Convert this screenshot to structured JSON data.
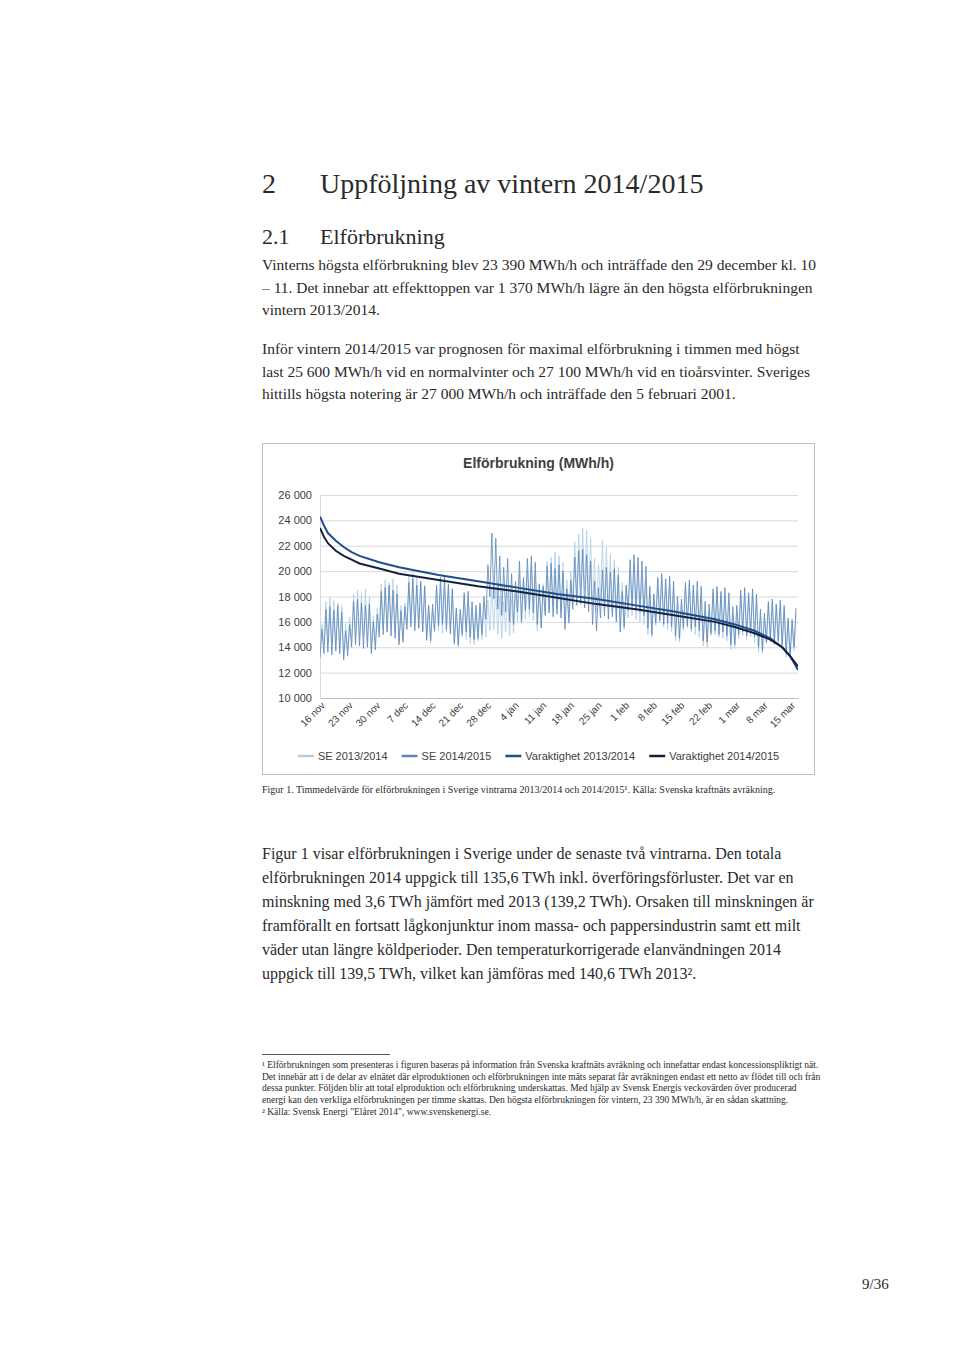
{
  "document": {
    "heading": {
      "number": "2",
      "text": "Uppföljning av vintern 2014/2015"
    },
    "subheading": {
      "number": "2.1",
      "text": "Elförbrukning"
    },
    "paragraphs": [
      "Vinterns högsta elförbrukning blev 23 390 MWh/h och inträffade den 29 december kl. 10 – 11. Det innebar att effekttoppen var 1 370 MWh/h lägre än den högsta elförbrukningen vintern 2013/2014.",
      "Inför vintern 2014/2015 var prognosen för maximal elförbrukning i timmen med högst last 25 600 MWh/h vid en normalvinter och 27 100 MWh/h vid en tioårsvinter. Sveriges hittills högsta notering är 27 000 MWh/h och inträffade den 5 februari 2001."
    ],
    "caption": "Figur 1. Timmedelvärde för elförbrukningen i Sverige vintrarna 2013/2014 och 2014/2015¹. Källa: Svenska kraftnäts avräkning.",
    "paragraphs_after": [
      "Figur 1 visar elförbrukningen i Sverige under de senaste två vintrarna. Den totala elförbrukningen 2014 uppgick till 135,6 TWh inkl. överföringsförluster. Det var en minskning med 3,6 TWh jämfört med 2013 (139,2 TWh). Orsaken till minskningen är framförallt en fortsatt lågkonjunktur inom massa- och pappersindustrin samt ett milt väder utan längre köldperioder. Den temperaturkorrigerade elanvändningen 2014 uppgick till 139,5 TWh, vilket kan jämföras med 140,6 TWh 2013²."
    ],
    "footnotes": [
      "¹ Elförbrukningen som presenteras i figuren baseras på information från Svenska kraftnäts avräkning och innefattar endast koncessionspliktigt nät. Det innebär att i de delar av elnätet där elproduktionen och elförbrukningen inte mäts separat får avräkningen endast ett netto av flödet till och från dessa punkter. Följden blir att total elproduktion och elförbrukning underskattas. Med hjälp av Svensk Energis veckovärden över producerad energi kan den verkliga elförbrukningen per timme skattas. Den högsta elförbrukningen för vintern, 23 390 MWh/h, är en sådan skattning.",
      "² Källa: Svensk Energi \"Elåret 2014\", www.svenskenergi.se."
    ],
    "page_number": "9/36"
  },
  "chart_data": {
    "type": "line",
    "title": "Elförbrukning (MWh/h)",
    "grid": true,
    "xlim": [
      0,
      121
    ],
    "ylim": [
      10000,
      26000
    ],
    "yticks": [
      {
        "value": 10000,
        "label": "10 000"
      },
      {
        "value": 12000,
        "label": "12 000"
      },
      {
        "value": 14000,
        "label": "14 000"
      },
      {
        "value": 16000,
        "label": "16 000"
      },
      {
        "value": 18000,
        "label": "18 000"
      },
      {
        "value": 20000,
        "label": "20 000"
      },
      {
        "value": 22000,
        "label": "22 000"
      },
      {
        "value": 24000,
        "label": "24 000"
      },
      {
        "value": 26000,
        "label": "26 000"
      }
    ],
    "xticks": [
      {
        "value": 0,
        "label": "16 nov"
      },
      {
        "value": 7,
        "label": "23 nov"
      },
      {
        "value": 14,
        "label": "30 nov"
      },
      {
        "value": 21,
        "label": "7 dec"
      },
      {
        "value": 28,
        "label": "14 dec"
      },
      {
        "value": 35,
        "label": "21 dec"
      },
      {
        "value": 42,
        "label": "28 dec"
      },
      {
        "value": 49,
        "label": "4 jan"
      },
      {
        "value": 56,
        "label": "11 jan"
      },
      {
        "value": 63,
        "label": "18 jan"
      },
      {
        "value": 70,
        "label": "25 jan"
      },
      {
        "value": 77,
        "label": "1 feb"
      },
      {
        "value": 84,
        "label": "8 feb"
      },
      {
        "value": 91,
        "label": "15 feb"
      },
      {
        "value": 98,
        "label": "22 feb"
      },
      {
        "value": 105,
        "label": "1 mar"
      },
      {
        "value": 112,
        "label": "8 mar"
      },
      {
        "value": 119,
        "label": "15 mar"
      }
    ],
    "x": [
      0,
      0.5,
      1,
      1.5,
      2,
      2.5,
      3,
      3.5,
      4,
      4.5,
      5,
      5.5,
      6,
      6.5,
      7,
      7.5,
      8,
      8.5,
      9,
      9.5,
      10,
      10.5,
      11,
      11.5,
      12,
      12.5,
      13,
      13.5,
      14,
      14.5,
      15,
      15.5,
      16,
      16.5,
      17,
      17.5,
      18,
      18.5,
      19,
      19.5,
      20,
      20.5,
      21,
      21.5,
      22,
      22.5,
      23,
      23.5,
      24,
      24.5,
      25,
      25.5,
      26,
      26.5,
      27,
      27.5,
      28,
      28.5,
      29,
      29.5,
      30,
      30.5,
      31,
      31.5,
      32,
      32.5,
      33,
      33.5,
      34,
      34.5,
      35,
      35.5,
      36,
      36.5,
      37,
      37.5,
      38,
      38.5,
      39,
      39.5,
      40,
      40.5,
      41,
      41.5,
      42,
      42.5,
      43,
      43.5,
      44,
      44.5,
      45,
      45.5,
      46,
      46.5,
      47,
      47.5,
      48,
      48.5,
      49,
      49.5,
      50,
      50.5,
      51,
      51.5,
      52,
      52.5,
      53,
      53.5,
      54,
      54.5,
      55,
      55.5,
      56,
      56.5,
      57,
      57.5,
      58,
      58.5,
      59,
      59.5,
      60,
      60.5,
      61,
      61.5,
      62,
      62.5,
      63,
      63.5,
      64,
      64.5,
      65,
      65.5,
      66,
      66.5,
      67,
      67.5,
      68,
      68.5,
      69,
      69.5,
      70,
      70.5,
      71,
      71.5,
      72,
      72.5,
      73,
      73.5,
      74,
      74.5,
      75,
      75.5,
      76,
      76.5,
      77,
      77.5,
      78,
      78.5,
      79,
      79.5,
      80,
      80.5,
      81,
      81.5,
      82,
      82.5,
      83,
      83.5,
      84,
      84.5,
      85,
      85.5,
      86,
      86.5,
      87,
      87.5,
      88,
      88.5,
      89,
      89.5,
      90,
      90.5,
      91,
      91.5,
      92,
      92.5,
      93,
      93.5,
      94,
      94.5,
      95,
      95.5,
      96,
      96.5,
      97,
      97.5,
      98,
      98.5,
      99,
      99.5,
      100,
      100.5,
      101,
      101.5,
      102,
      102.5,
      103,
      103.5,
      104,
      104.5,
      105,
      105.5,
      106,
      106.5,
      107,
      107.5,
      108,
      108.5,
      109,
      109.5,
      110,
      110.5,
      111,
      111.5,
      112,
      112.5,
      113,
      113.5,
      114,
      114.5,
      115,
      115.5,
      116,
      116.5,
      117,
      117.5,
      118,
      118.5,
      119,
      119.5,
      120,
      120.5
    ],
    "series": [
      {
        "name": "SE 2013/2014",
        "color": "#b0cde6",
        "values": [
          13500,
          15800,
          14200,
          17600,
          14400,
          17900,
          14300,
          17700,
          14100,
          17500,
          14000,
          17300,
          13400,
          15900,
          13800,
          16400,
          14600,
          18200,
          14800,
          18500,
          14700,
          18300,
          14900,
          18600,
          14500,
          18000,
          13900,
          16500,
          14300,
          17100,
          15300,
          19000,
          15500,
          19300,
          15400,
          19100,
          15600,
          19400,
          15200,
          18900,
          14500,
          17300,
          14600,
          17500,
          15800,
          19600,
          16000,
          19900,
          15700,
          19500,
          15500,
          19200,
          15300,
          18900,
          14500,
          17300,
          14300,
          17000,
          15200,
          18800,
          15300,
          18900,
          15100,
          18600,
          15200,
          18800,
          15000,
          18500,
          14200,
          16900,
          14000,
          16700,
          14800,
          18100,
          14600,
          17500,
          14300,
          16900,
          14200,
          16800,
          14500,
          17200,
          14600,
          17400,
          14800,
          17700,
          15300,
          18600,
          15400,
          18700,
          15000,
          18000,
          14700,
          17600,
          15200,
          18300,
          14900,
          17800,
          15100,
          18200,
          16000,
          19800,
          15800,
          19200,
          16200,
          20100,
          16400,
          20400,
          16100,
          19900,
          15300,
          18500,
          15600,
          19000,
          16800,
          20800,
          17000,
          21100,
          17300,
          21500,
          17100,
          21200,
          16800,
          20700,
          15900,
          19300,
          16400,
          20000,
          17800,
          22300,
          18200,
          22900,
          18600,
          23400,
          18500,
          23200,
          18100,
          22600,
          17200,
          21000,
          16800,
          20500,
          17900,
          22400,
          17600,
          21900,
          17200,
          21300,
          16900,
          20900,
          16500,
          20300,
          15700,
          19100,
          15400,
          18700,
          16300,
          20100,
          16500,
          20400,
          16200,
          20000,
          16000,
          19700,
          15800,
          19400,
          15000,
          18200,
          14800,
          17900,
          15700,
          19300,
          15900,
          19500,
          15600,
          19100,
          15400,
          18900,
          15200,
          18600,
          14500,
          17500,
          14400,
          17400,
          15300,
          18800,
          15500,
          19000,
          15200,
          18600,
          15000,
          18400,
          14800,
          18100,
          14100,
          17000,
          14000,
          16900,
          14900,
          18300,
          15000,
          18400,
          14800,
          18100,
          14700,
          18000,
          14500,
          17700,
          13800,
          16600,
          13900,
          16800,
          14700,
          18000,
          14900,
          18200,
          14600,
          17900,
          14800,
          18100,
          14400,
          17600,
          13600,
          16400,
          13500,
          16300,
          14300,
          17400,
          14400,
          17500,
          14200,
          17300,
          14100,
          17200,
          13900,
          16900,
          13200,
          15900,
          13000,
          15700,
          13700,
          16800
        ]
      },
      {
        "name": "SE 2014/2015",
        "color": "#5b87b5",
        "values": [
          13200,
          15400,
          13500,
          17000,
          13600,
          17200,
          13400,
          16900,
          13700,
          17300,
          13500,
          16800,
          13000,
          15300,
          13300,
          15800,
          14000,
          17600,
          14200,
          17800,
          14100,
          17500,
          13900,
          17300,
          14000,
          17400,
          13500,
          16000,
          13800,
          16600,
          14800,
          18400,
          15000,
          18700,
          15200,
          18900,
          14900,
          18500,
          14700,
          18200,
          14200,
          16900,
          14400,
          17200,
          15400,
          19100,
          15600,
          19400,
          15300,
          18900,
          15500,
          19200,
          15200,
          18800,
          14600,
          17300,
          14500,
          17400,
          15300,
          18900,
          15700,
          19500,
          15800,
          19600,
          15400,
          19000,
          15100,
          18600,
          14300,
          17100,
          14200,
          17000,
          15000,
          18300,
          15200,
          18400,
          14800,
          17600,
          14600,
          17300,
          14700,
          17500,
          15000,
          18000,
          16200,
          20500,
          18000,
          23000,
          17800,
          22600,
          17000,
          21200,
          16500,
          20300,
          16800,
          21000,
          16000,
          19800,
          15800,
          19200,
          16800,
          20800,
          16000,
          19500,
          16900,
          21000,
          17000,
          21200,
          16700,
          20700,
          15800,
          19000,
          15500,
          18800,
          16500,
          20400,
          16700,
          20600,
          16400,
          20200,
          16600,
          20500,
          16300,
          20000,
          15400,
          18600,
          15900,
          19300,
          17000,
          21100,
          17300,
          21600,
          17400,
          21700,
          17100,
          21300,
          16800,
          20800,
          15800,
          19200,
          15300,
          18700,
          16300,
          20100,
          16500,
          20300,
          16200,
          19900,
          16400,
          20200,
          16000,
          19700,
          15200,
          18400,
          15600,
          18900,
          16900,
          20900,
          17200,
          21300,
          17000,
          21100,
          16800,
          20800,
          16500,
          20400,
          15500,
          18800,
          15000,
          18200,
          15900,
          19500,
          16100,
          19800,
          15800,
          19400,
          15900,
          19600,
          15600,
          19200,
          14900,
          18000,
          14700,
          17800,
          15500,
          19100,
          15700,
          19300,
          15400,
          18900,
          15600,
          19200,
          15300,
          18800,
          14500,
          17600,
          14400,
          17400,
          15100,
          18600,
          15300,
          18800,
          15000,
          18400,
          15200,
          18700,
          14900,
          18300,
          14200,
          17200,
          14200,
          17300,
          15000,
          18500,
          15200,
          18700,
          14900,
          18300,
          15100,
          18600,
          14800,
          18200,
          14000,
          17000,
          13700,
          16700,
          14400,
          17600,
          14600,
          17800,
          14300,
          17400,
          14500,
          17700,
          14200,
          17300,
          13500,
          16300,
          13300,
          16200,
          14000,
          17100
        ]
      },
      {
        "name": "Varaktighet 2013/2014",
        "color": "#1f4e8c",
        "x": [
          0,
          1,
          2,
          4,
          6,
          8,
          10,
          15,
          20,
          30,
          40,
          50,
          60,
          70,
          80,
          90,
          100,
          105,
          110,
          114,
          117,
          119,
          121
        ],
        "values": [
          24300,
          23600,
          23000,
          22400,
          21900,
          21500,
          21200,
          20700,
          20300,
          19700,
          19200,
          18700,
          18200,
          17800,
          17300,
          16800,
          16200,
          15800,
          15300,
          14700,
          14000,
          13300,
          12200
        ]
      },
      {
        "name": "Varaktighet 2014/2015",
        "color": "#16223d",
        "x": [
          0,
          1,
          2,
          4,
          6,
          8,
          10,
          15,
          20,
          30,
          40,
          50,
          60,
          70,
          80,
          90,
          100,
          105,
          110,
          114,
          117,
          119,
          121
        ],
        "values": [
          23400,
          22700,
          22200,
          21600,
          21200,
          20900,
          20600,
          20200,
          19800,
          19300,
          18800,
          18400,
          17900,
          17400,
          17000,
          16500,
          16000,
          15600,
          15100,
          14600,
          14000,
          13300,
          12500
        ]
      }
    ]
  }
}
